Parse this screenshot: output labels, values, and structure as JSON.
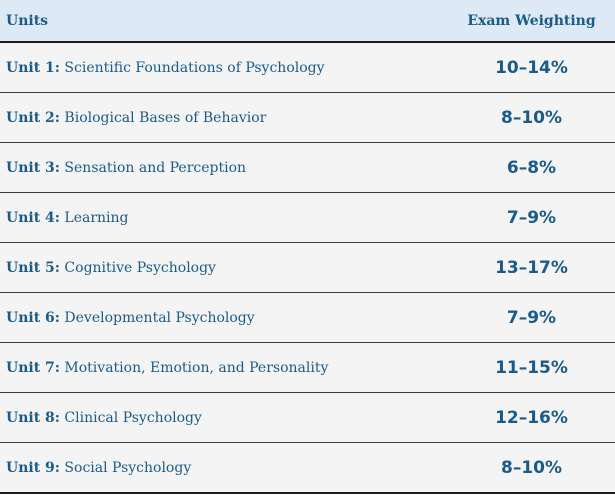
{
  "table": {
    "headers": {
      "units": "Units",
      "weighting": "Exam Weighting"
    },
    "rows": [
      {
        "unit": "Unit 1:",
        "title": "Scientific Foundations of Psychology",
        "weighting": "10–14%"
      },
      {
        "unit": "Unit 2:",
        "title": "Biological Bases of Behavior",
        "weighting": "8–10%"
      },
      {
        "unit": "Unit 3:",
        "title": "Sensation and Perception",
        "weighting": "6–8%"
      },
      {
        "unit": "Unit 4:",
        "title": "Learning",
        "weighting": "7–9%"
      },
      {
        "unit": "Unit 5:",
        "title": "Cognitive Psychology",
        "weighting": "13–17%"
      },
      {
        "unit": "Unit 6:",
        "title": "Developmental Psychology",
        "weighting": "7–9%"
      },
      {
        "unit": "Unit 7:",
        "title": "Motivation, Emotion, and Personality",
        "weighting": "11–15%"
      },
      {
        "unit": "Unit 8:",
        "title": "Clinical Psychology",
        "weighting": "12–16%"
      },
      {
        "unit": "Unit 9:",
        "title": "Social Psychology",
        "weighting": "8–10%"
      }
    ]
  },
  "colors": {
    "text": "#1a5b8b",
    "header_bg": "#dde9f5",
    "row_bg": "#f4f4f4",
    "rule": "#1c1c1c"
  }
}
